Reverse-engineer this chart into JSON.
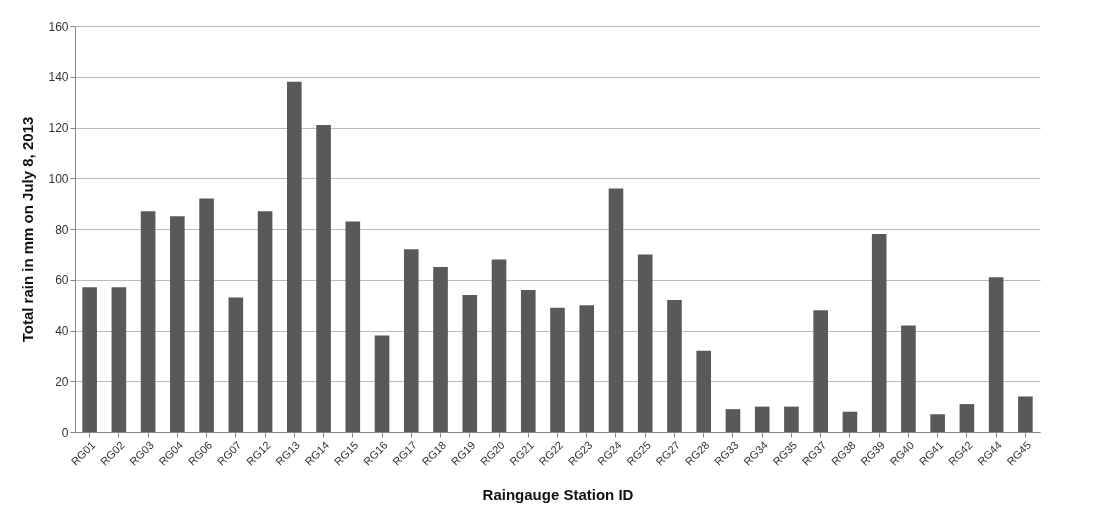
{
  "chart_data": {
    "type": "bar",
    "xlabel": "Raingauge Station ID",
    "ylabel": "Total rain in mm on July 8, 2013",
    "categories": [
      "RG01",
      "RG02",
      "RG03",
      "RG04",
      "RG06",
      "RG07",
      "RG12",
      "RG13",
      "RG14",
      "RG15",
      "RG16",
      "RG17",
      "RG18",
      "RG19",
      "RG20",
      "RG21",
      "RG22",
      "RG23",
      "RG24",
      "RG25",
      "RG27",
      "RG28",
      "RG33",
      "RG34",
      "RG35",
      "RG37",
      "RG38",
      "RG39",
      "RG40",
      "RG41",
      "RG42",
      "RG44",
      "RG45"
    ],
    "values": [
      57,
      57,
      87,
      85,
      92,
      53,
      87,
      138,
      121,
      83,
      38,
      72,
      65,
      54,
      68,
      56,
      49,
      50,
      96,
      70,
      52,
      32,
      9,
      10,
      10,
      48,
      8,
      78,
      42,
      7,
      11,
      61,
      14
    ],
    "color": "#595959",
    "ylim": [
      0,
      160
    ],
    "yticks": [
      0,
      20,
      40,
      60,
      80,
      100,
      120,
      140,
      160
    ],
    "grid": "y"
  }
}
